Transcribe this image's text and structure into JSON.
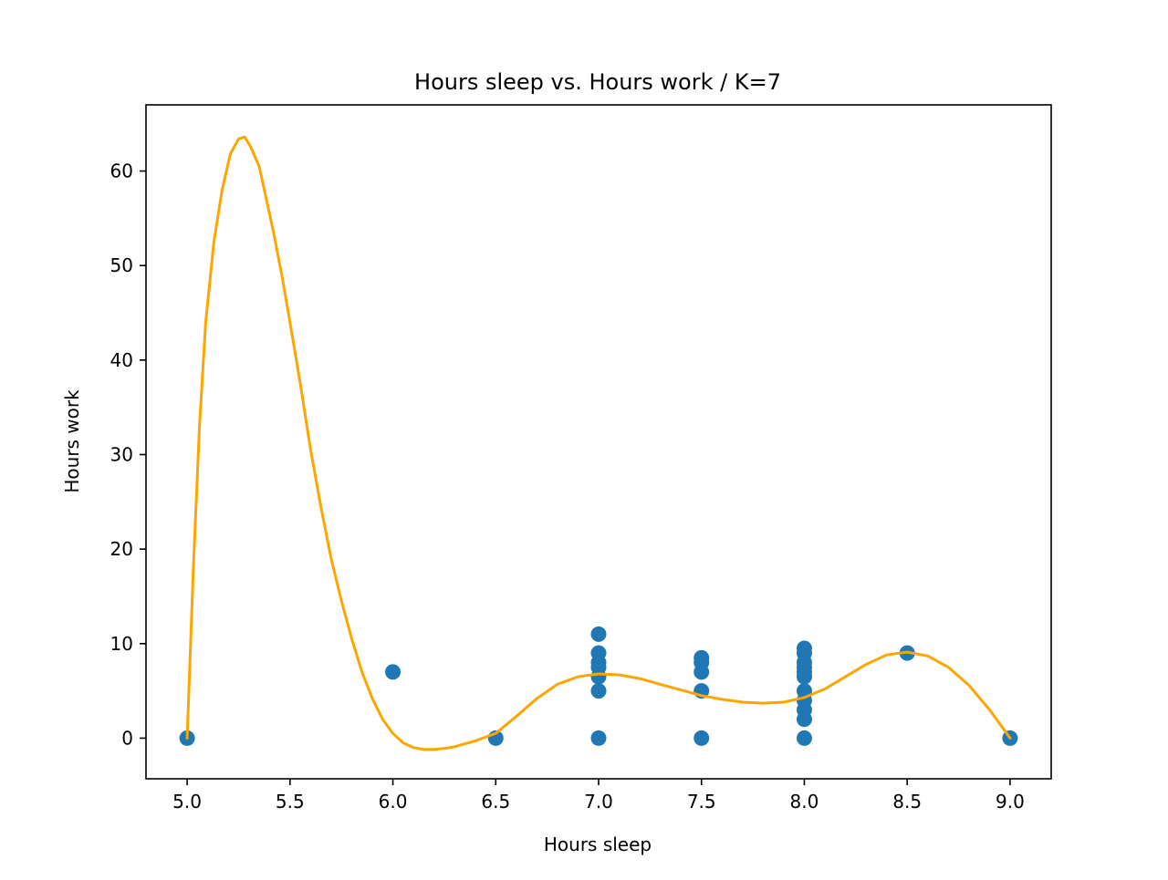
{
  "chart_data": {
    "type": "scatter",
    "title": "Hours sleep vs. Hours work / K=7",
    "xlabel": "Hours sleep",
    "ylabel": "Hours work",
    "xlim": [
      4.8,
      9.2
    ],
    "ylim": [
      -4.3,
      67.0
    ],
    "x_ticks": [
      5.0,
      5.5,
      6.0,
      6.5,
      7.0,
      7.5,
      8.0,
      8.5,
      9.0
    ],
    "x_tick_labels": [
      "5.0",
      "5.5",
      "6.0",
      "6.5",
      "7.0",
      "7.5",
      "8.0",
      "8.5",
      "9.0"
    ],
    "y_ticks": [
      0,
      10,
      20,
      30,
      40,
      50,
      60
    ],
    "y_tick_labels": [
      "0",
      "10",
      "20",
      "30",
      "40",
      "50",
      "60"
    ],
    "grid": false,
    "colors": {
      "points": "#1f77b4",
      "curve": "#ffa500"
    },
    "series": [
      {
        "kind": "points",
        "x": [
          5.0,
          6.0,
          6.5,
          7.0,
          7.0,
          7.0,
          7.0,
          7.0,
          7.0,
          7.0,
          7.5,
          7.5,
          7.5,
          7.5,
          7.5,
          8.0,
          8.0,
          8.0,
          8.0,
          8.0,
          8.0,
          8.0,
          8.0,
          8.0,
          8.0,
          8.0,
          8.5,
          9.0
        ],
        "y": [
          0,
          7,
          0,
          0,
          5,
          6.5,
          7.5,
          8,
          9,
          11,
          0,
          5,
          7,
          8,
          8.5,
          0,
          2,
          3,
          4,
          5,
          6.5,
          7,
          7.5,
          8,
          9,
          9.5,
          9,
          0
        ]
      },
      {
        "kind": "curve",
        "x": [
          5.0,
          5.03,
          5.06,
          5.09,
          5.13,
          5.17,
          5.21,
          5.25,
          5.28,
          5.31,
          5.35,
          5.38,
          5.42,
          5.46,
          5.5,
          5.55,
          5.6,
          5.65,
          5.7,
          5.75,
          5.8,
          5.85,
          5.9,
          5.95,
          6.0,
          6.05,
          6.1,
          6.15,
          6.2,
          6.25,
          6.3,
          6.35,
          6.4,
          6.5,
          6.6,
          6.7,
          6.8,
          6.9,
          7.0,
          7.1,
          7.2,
          7.3,
          7.4,
          7.5,
          7.6,
          7.7,
          7.8,
          7.9,
          8.0,
          8.1,
          8.2,
          8.3,
          8.4,
          8.5,
          8.6,
          8.7,
          8.8,
          8.9,
          9.0
        ],
        "y": [
          0,
          18,
          33,
          44,
          52.5,
          58,
          61.8,
          63.4,
          63.6,
          62.5,
          60.5,
          57.5,
          53.5,
          49,
          44,
          37.5,
          30.5,
          24.5,
          19,
          14.5,
          10.5,
          7,
          4.2,
          2,
          0.5,
          -0.5,
          -1,
          -1.2,
          -1.2,
          -1.1,
          -0.9,
          -0.6,
          -0.3,
          0.5,
          2.3,
          4.2,
          5.7,
          6.5,
          6.8,
          6.7,
          6.3,
          5.7,
          5.1,
          4.5,
          4.1,
          3.8,
          3.7,
          3.8,
          4.3,
          5.2,
          6.5,
          7.8,
          8.8,
          9.1,
          8.7,
          7.5,
          5.6,
          3,
          0
        ]
      }
    ]
  }
}
